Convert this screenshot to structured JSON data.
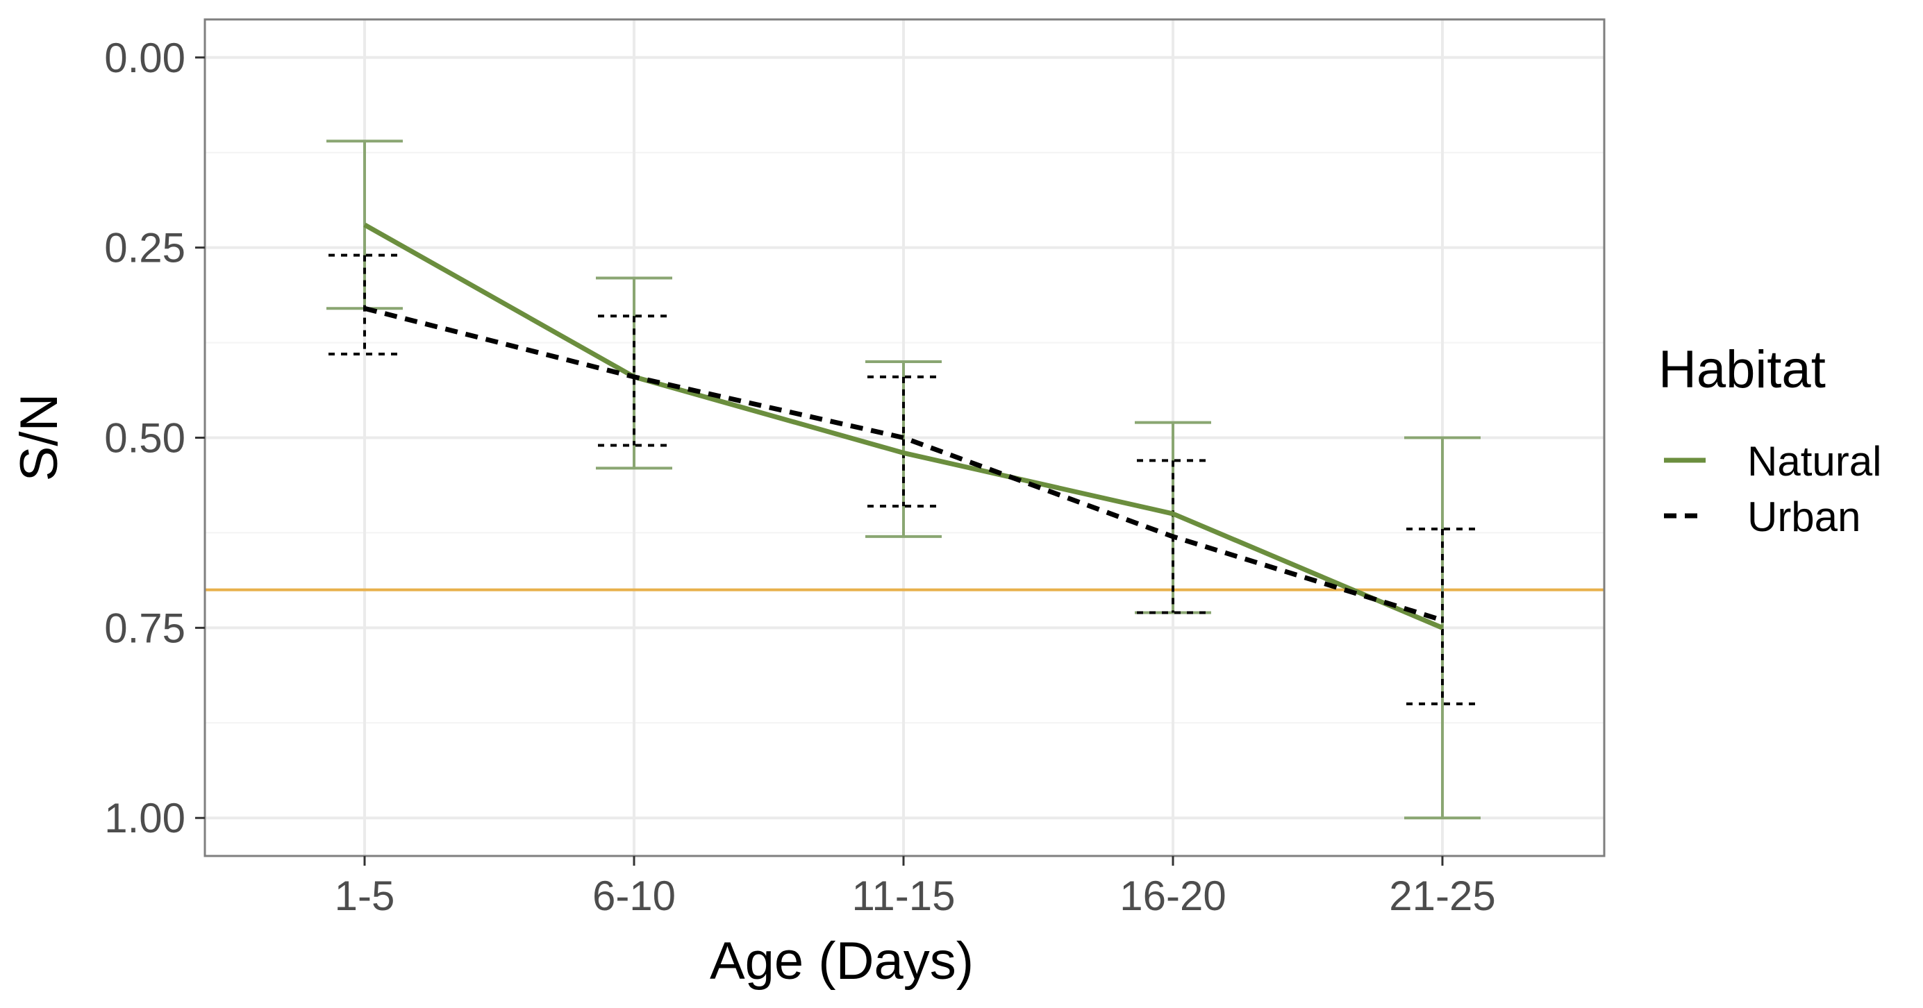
{
  "chart_data": {
    "type": "line",
    "title": "",
    "xlabel": "Age (Days)",
    "ylabel": "S/N",
    "categories": [
      "1-5",
      "6-10",
      "11-15",
      "16-20",
      "21-25"
    ],
    "y_ticks": [
      "0.00",
      "0.25",
      "0.50",
      "0.75",
      "1.00"
    ],
    "y_tick_values": [
      0,
      0.25,
      0.5,
      0.75,
      1.0
    ],
    "ylim": [
      -0.05,
      1.05
    ],
    "y_reversed": true,
    "grid": true,
    "legend": {
      "title": "Habitat",
      "position": "right"
    },
    "reference_line": {
      "value": 0.7,
      "color": "#E8B04B"
    },
    "series": [
      {
        "name": "Natural",
        "color": "#6B8E3E",
        "style": "solid",
        "values": [
          0.22,
          0.42,
          0.52,
          0.6,
          0.75
        ],
        "err_low": [
          0.11,
          0.29,
          0.4,
          0.48,
          0.5
        ],
        "err_high": [
          0.33,
          0.54,
          0.63,
          0.73,
          1.0
        ]
      },
      {
        "name": "Urban",
        "color": "#000000",
        "style": "dashed",
        "values": [
          0.33,
          0.42,
          0.5,
          0.63,
          0.74
        ],
        "err_low": [
          0.26,
          0.34,
          0.42,
          0.53,
          0.62
        ],
        "err_high": [
          0.39,
          0.51,
          0.59,
          0.73,
          0.85
        ]
      }
    ]
  }
}
